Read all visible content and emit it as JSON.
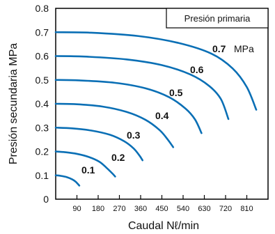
{
  "chart_data": {
    "type": "line",
    "xlabel": "Caudal Nℓ/min",
    "ylabel": "Presión secundaria MPa",
    "xlim": [
      0,
      900
    ],
    "ylim": [
      0,
      0.8
    ],
    "x_ticks": [
      "90",
      "180",
      "270",
      "360",
      "450",
      "540",
      "630",
      "720",
      "810"
    ],
    "x_tick_values": [
      90,
      180,
      270,
      360,
      450,
      540,
      630,
      720,
      810
    ],
    "y_ticks": [
      "0",
      "0.1",
      "0.2",
      "0.3",
      "0.4",
      "0.5",
      "0.6",
      "0.7",
      "0.8"
    ],
    "y_tick_values": [
      0,
      0.1,
      0.2,
      0.3,
      0.4,
      0.5,
      0.6,
      0.7,
      0.8
    ],
    "grid": false,
    "legend": "Presión primaria",
    "legend_placement": "top-right",
    "line_color": "#0a6fb5",
    "series": [
      {
        "name": "0.1",
        "label": "0.1",
        "points": [
          [
            0,
            0.1
          ],
          [
            20,
            0.098
          ],
          [
            45,
            0.093
          ],
          [
            70,
            0.083
          ],
          [
            85,
            0.073
          ],
          [
            100,
            0.057
          ]
        ]
      },
      {
        "name": "0.2",
        "label": "0.2",
        "points": [
          [
            0,
            0.2
          ],
          [
            40,
            0.197
          ],
          [
            90,
            0.19
          ],
          [
            140,
            0.177
          ],
          [
            185,
            0.157
          ],
          [
            215,
            0.132
          ],
          [
            240,
            0.108
          ],
          [
            252,
            0.095
          ]
        ]
      },
      {
        "name": "0.3",
        "label": "0.3",
        "points": [
          [
            0,
            0.3
          ],
          [
            70,
            0.297
          ],
          [
            150,
            0.288
          ],
          [
            230,
            0.27
          ],
          [
            290,
            0.243
          ],
          [
            330,
            0.213
          ],
          [
            355,
            0.183
          ],
          [
            368,
            0.163
          ]
        ]
      },
      {
        "name": "0.4",
        "label": "0.4",
        "points": [
          [
            0,
            0.4
          ],
          [
            90,
            0.398
          ],
          [
            200,
            0.388
          ],
          [
            300,
            0.366
          ],
          [
            380,
            0.333
          ],
          [
            440,
            0.29
          ],
          [
            475,
            0.25
          ],
          [
            498,
            0.218
          ]
        ]
      },
      {
        "name": "0.5",
        "label": "0.5",
        "points": [
          [
            0,
            0.5
          ],
          [
            100,
            0.498
          ],
          [
            250,
            0.488
          ],
          [
            380,
            0.465
          ],
          [
            480,
            0.428
          ],
          [
            550,
            0.38
          ],
          [
            590,
            0.335
          ],
          [
            618,
            0.277
          ]
        ]
      },
      {
        "name": "0.6",
        "label": "0.6",
        "points": [
          [
            0,
            0.6
          ],
          [
            120,
            0.598
          ],
          [
            300,
            0.586
          ],
          [
            450,
            0.562
          ],
          [
            570,
            0.523
          ],
          [
            650,
            0.475
          ],
          [
            700,
            0.42
          ],
          [
            732,
            0.336
          ]
        ]
      },
      {
        "name": "0.7",
        "label": "0.7",
        "unit": "MPa",
        "points": [
          [
            0,
            0.7
          ],
          [
            150,
            0.698
          ],
          [
            350,
            0.684
          ],
          [
            520,
            0.655
          ],
          [
            660,
            0.61
          ],
          [
            750,
            0.548
          ],
          [
            810,
            0.47
          ],
          [
            850,
            0.375
          ]
        ]
      }
    ]
  }
}
